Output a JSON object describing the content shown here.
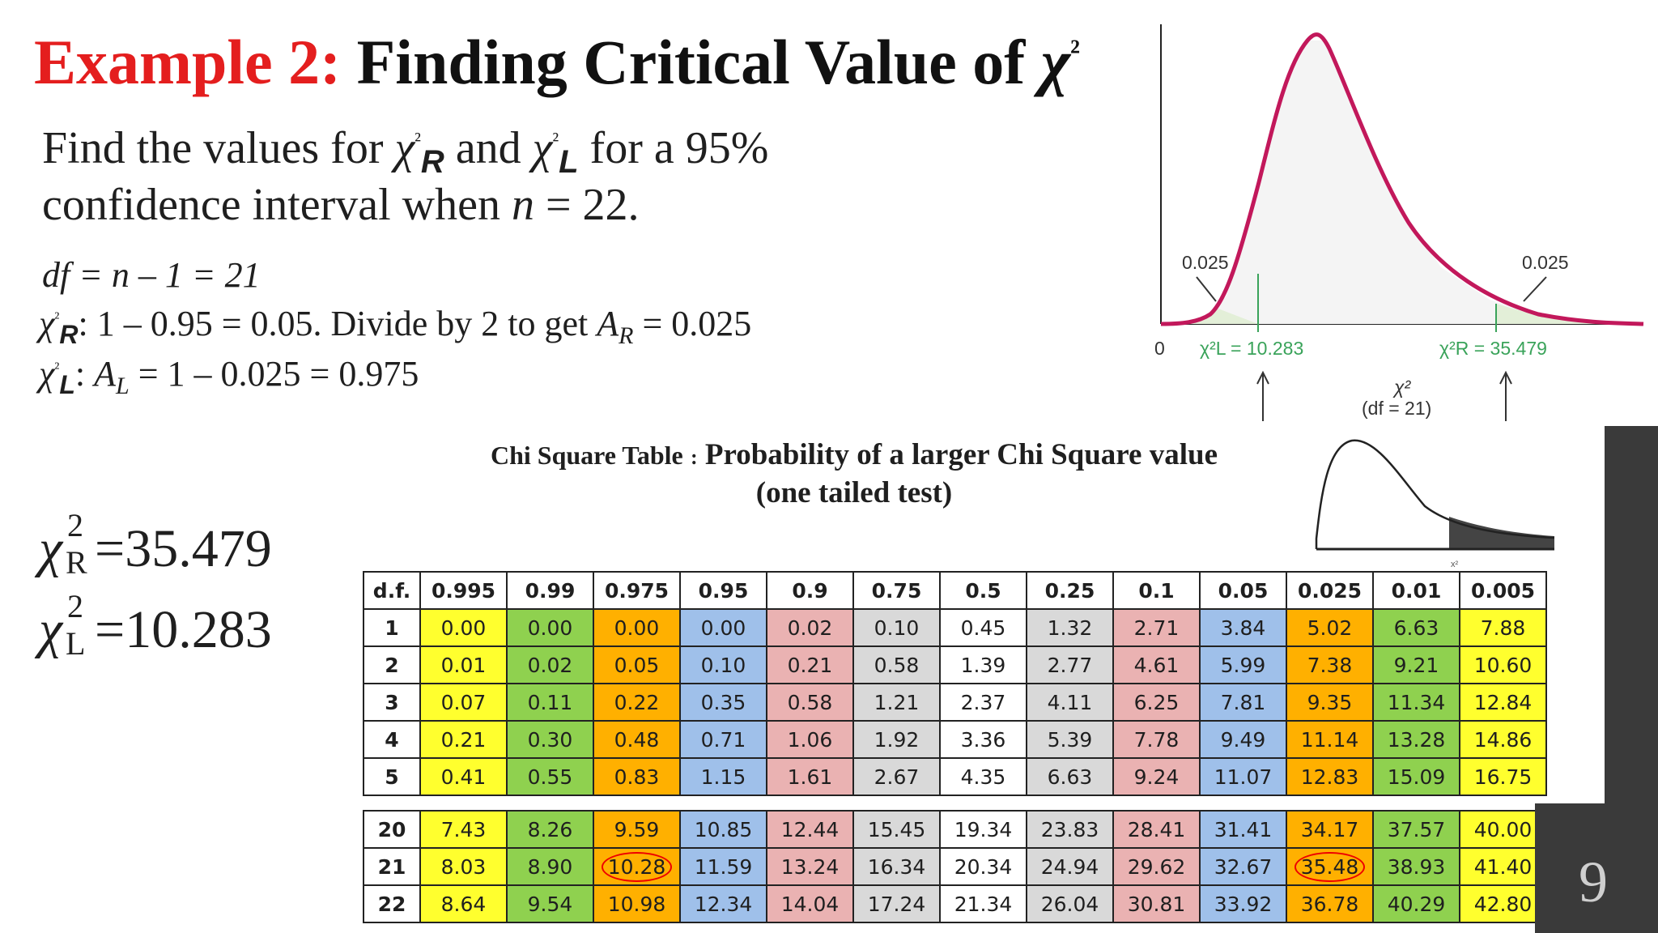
{
  "title": {
    "prefix": "Example 2:",
    "main": "Finding Critical Value of ",
    "chi": "χ",
    "sup": "²"
  },
  "question": {
    "line1_a": "Find the values for ",
    "chi": "χ",
    "sup": "²",
    "sub_r": "R",
    "line1_b": " and ",
    "sub_l": "L",
    "line1_c": " for a 95%",
    "line2_a": "confidence interval when ",
    "n": "n",
    "line2_b": " = 22."
  },
  "work": {
    "df_line": "df = n – 1 = 21",
    "r_line_a": ": 1 – 0.95 = 0.05.  Divide by 2 to get ",
    "a_r": "A",
    "r_sub": "R",
    "r_line_b": " = 0.025",
    "l_line_a": ": ",
    "a_l": "A",
    "l_sub": "L",
    "l_line_b": " = 1 – 0.025 = 0.975"
  },
  "answers": {
    "chi": "χ",
    "sup": "2",
    "r_sub": "R",
    "r_value": "=35.479",
    "l_sub": "L",
    "l_value": "=10.283"
  },
  "curve": {
    "left_area": "0.025",
    "right_area": "0.025",
    "zero": "0",
    "left_label": "χ²L = 10.283",
    "right_label": "χ²R = 35.479",
    "axis_label": "χ²",
    "df_label": "(df = 21)",
    "curve_color": "#c2185b",
    "marker_color": "#3aa35a"
  },
  "table_title": {
    "line1_a": "Chi Square Table",
    "sep": ":",
    "line1_b": "Probability of a larger Chi Square value",
    "line2": "(one tailed test)"
  },
  "table": {
    "header": [
      "d.f.",
      "0.995",
      "0.99",
      "0.975",
      "0.95",
      "0.9",
      "0.75",
      "0.5",
      "0.25",
      "0.1",
      "0.05",
      "0.025",
      "0.01",
      "0.005"
    ],
    "rows_top": [
      [
        "1",
        "0.00",
        "0.00",
        "0.00",
        "0.00",
        "0.02",
        "0.10",
        "0.45",
        "1.32",
        "2.71",
        "3.84",
        "5.02",
        "6.63",
        "7.88"
      ],
      [
        "2",
        "0.01",
        "0.02",
        "0.05",
        "0.10",
        "0.21",
        "0.58",
        "1.39",
        "2.77",
        "4.61",
        "5.99",
        "7.38",
        "9.21",
        "10.60"
      ],
      [
        "3",
        "0.07",
        "0.11",
        "0.22",
        "0.35",
        "0.58",
        "1.21",
        "2.37",
        "4.11",
        "6.25",
        "7.81",
        "9.35",
        "11.34",
        "12.84"
      ],
      [
        "4",
        "0.21",
        "0.30",
        "0.48",
        "0.71",
        "1.06",
        "1.92",
        "3.36",
        "5.39",
        "7.78",
        "9.49",
        "11.14",
        "13.28",
        "14.86"
      ],
      [
        "5",
        "0.41",
        "0.55",
        "0.83",
        "1.15",
        "1.61",
        "2.67",
        "4.35",
        "6.63",
        "9.24",
        "11.07",
        "12.83",
        "15.09",
        "16.75"
      ]
    ],
    "rows_bottom": [
      [
        "20",
        "7.43",
        "8.26",
        "9.59",
        "10.85",
        "12.44",
        "15.45",
        "19.34",
        "23.83",
        "28.41",
        "31.41",
        "34.17",
        "37.57",
        "40.00"
      ],
      [
        "21",
        "8.03",
        "8.90",
        "10.28",
        "11.59",
        "13.24",
        "16.34",
        "20.34",
        "24.94",
        "29.62",
        "32.67",
        "35.48",
        "38.93",
        "41.40"
      ],
      [
        "22",
        "8.64",
        "9.54",
        "10.98",
        "12.34",
        "14.04",
        "17.24",
        "21.34",
        "26.04",
        "30.81",
        "33.92",
        "36.78",
        "40.29",
        "42.80"
      ]
    ],
    "circled_cells": [
      [
        1,
        3
      ],
      [
        1,
        11
      ]
    ]
  },
  "small_plot_label": "x²",
  "page_number": "9"
}
